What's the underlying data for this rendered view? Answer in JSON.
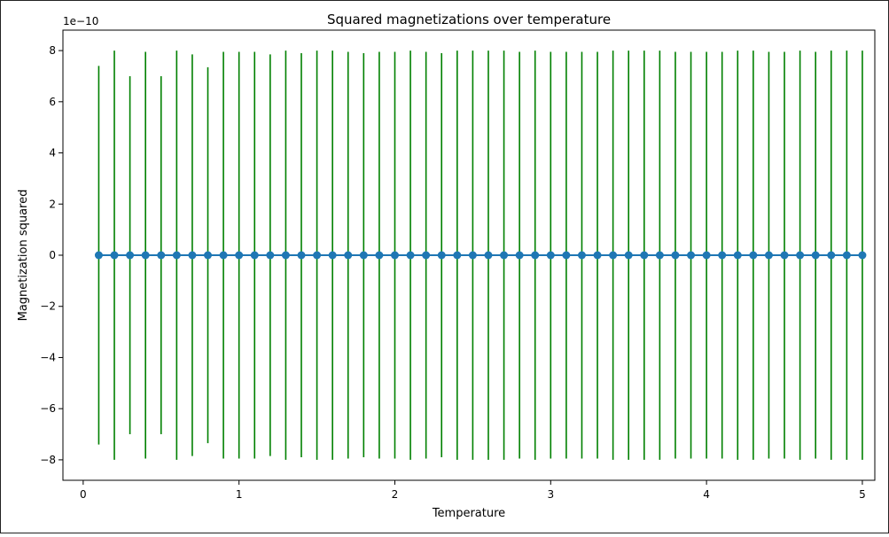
{
  "chart_data": {
    "type": "scatter",
    "title": "Squared magnetizations over temperature",
    "xlabel": "Temperature",
    "ylabel": "Magnetization squared",
    "y_offset_text": "1e−10",
    "xlim": [
      -0.13,
      5.08
    ],
    "ylim": [
      -8.8,
      8.8
    ],
    "xticks": [
      0,
      1,
      2,
      3,
      4,
      5
    ],
    "yticks": [
      -8,
      -6,
      -4,
      -2,
      0,
      2,
      4,
      6,
      8
    ],
    "y_scale_factor": 1e-10,
    "grid": false,
    "line_color": "#1f77b4",
    "errorbar_color": "#008000",
    "series": [
      {
        "x": [
          0.1,
          0.2,
          0.3,
          0.4,
          0.5,
          0.6,
          0.7,
          0.8,
          0.9,
          1.0,
          1.1,
          1.2,
          1.3,
          1.4,
          1.5,
          1.6,
          1.7,
          1.8,
          1.9,
          2.0,
          2.1,
          2.2,
          2.3,
          2.4,
          2.5,
          2.6,
          2.7,
          2.8,
          2.9,
          3.0,
          3.1,
          3.2,
          3.3,
          3.4,
          3.5,
          3.6,
          3.7,
          3.8,
          3.9,
          4.0,
          4.1,
          4.2,
          4.3,
          4.4,
          4.5,
          4.6,
          4.7,
          4.8,
          4.9,
          5.0
        ],
        "y": [
          0,
          0,
          0,
          0,
          0,
          0,
          0,
          0,
          0,
          0,
          0,
          0,
          0,
          0,
          0,
          0,
          0,
          0,
          0,
          0,
          0,
          0,
          0,
          0,
          0,
          0,
          0,
          0,
          0,
          0,
          0,
          0,
          0,
          0,
          0,
          0,
          0,
          0,
          0,
          0,
          0,
          0,
          0,
          0,
          0,
          0,
          0,
          0,
          0,
          0
        ],
        "yerr": [
          7.4,
          8.0,
          7.0,
          7.95,
          7.0,
          8.0,
          7.85,
          7.35,
          7.95,
          7.95,
          7.95,
          7.85,
          8.0,
          7.9,
          8.0,
          8.0,
          7.95,
          7.9,
          7.95,
          7.95,
          8.0,
          7.95,
          7.9,
          8.0,
          8.0,
          8.0,
          8.0,
          7.95,
          8.0,
          7.95,
          7.95,
          7.95,
          7.95,
          8.0,
          8.0,
          8.0,
          8.0,
          7.95,
          7.95,
          7.95,
          7.95,
          8.0,
          8.0,
          7.95,
          7.95,
          8.0,
          7.95,
          8.0,
          8.0,
          8.0
        ]
      }
    ]
  }
}
